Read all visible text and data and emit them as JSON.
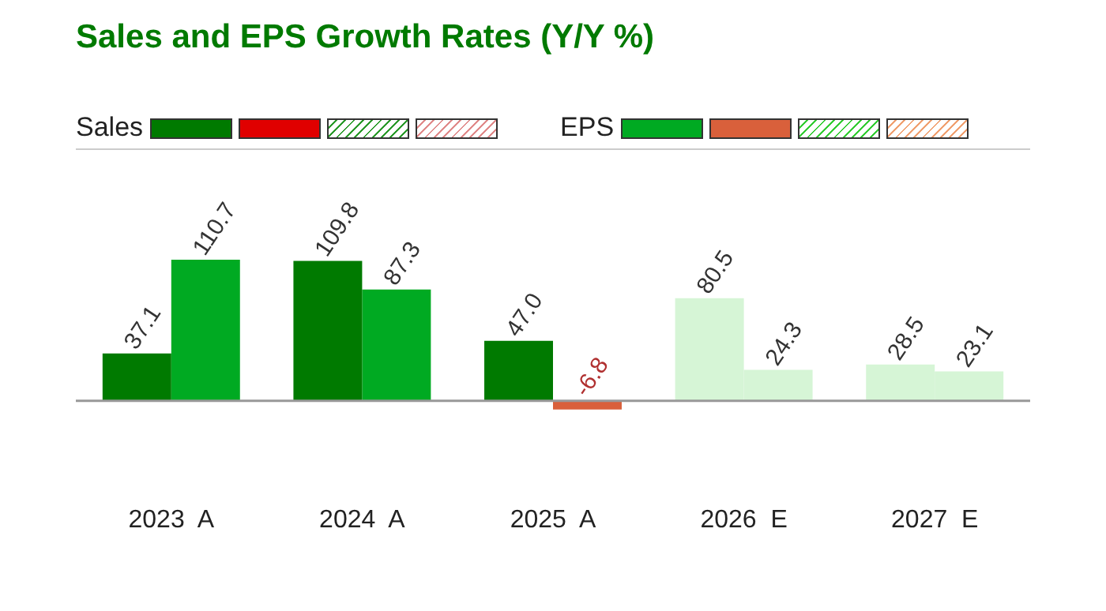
{
  "chart_data": {
    "type": "bar",
    "title": "Sales and EPS Growth Rates (Y/Y %)",
    "categories": [
      "2023  A",
      "2024  A",
      "2025  A",
      "2026  E",
      "2027  E"
    ],
    "series": [
      {
        "name": "Sales",
        "color": "#007a00",
        "colors": [
          "#007a00",
          "#007a00",
          "#007a00",
          "#d6f5d6",
          "#d6f5d6"
        ],
        "values": [
          37.1,
          109.8,
          47.0,
          80.5,
          28.5
        ],
        "value_labels": [
          "37.1",
          "109.8",
          "47.0",
          "80.5",
          "28.5"
        ]
      },
      {
        "name": "EPS",
        "color": "#00aa22",
        "colors": [
          "#00aa22",
          "#00aa22",
          "#d9603b",
          "#d6f5d6",
          "#d6f5d6"
        ],
        "values": [
          110.7,
          87.3,
          -6.8,
          24.3,
          23.1
        ],
        "value_labels": [
          "110.7",
          "87.3",
          "-6.8",
          "24.3",
          "23.1"
        ]
      }
    ],
    "legend": "top left",
    "grid": false
  }
}
